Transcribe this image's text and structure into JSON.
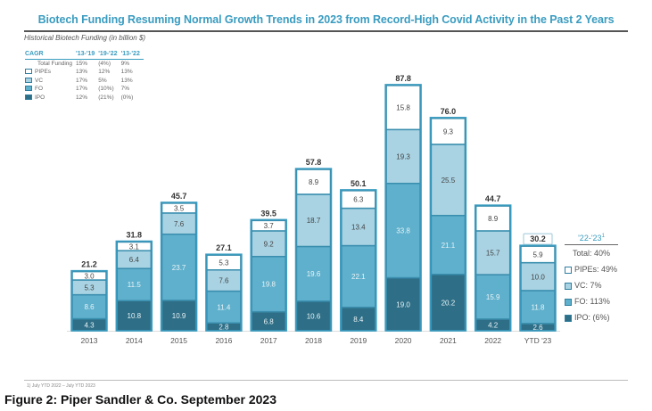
{
  "title": "Biotech Funding Resuming Normal Growth Trends in 2023 from Record-High Covid Activity in the Past 2 Years",
  "subtitle": "Historical Biotech Funding (in billion $)",
  "cagr_table": {
    "header": [
      "CAGR",
      "'13-'19",
      "'19-'22",
      "'13-'22"
    ],
    "rows": [
      {
        "label": "Total Funding",
        "swatch": null,
        "values": [
          "15%",
          "(4%)",
          "9%"
        ]
      },
      {
        "label": "PIPEs",
        "swatch": "#ffffff",
        "values": [
          "13%",
          "12%",
          "13%"
        ]
      },
      {
        "label": "VC",
        "swatch": "#a9d3e3",
        "values": [
          "17%",
          "5%",
          "13%"
        ]
      },
      {
        "label": "FO",
        "swatch": "#5fb0cc",
        "values": [
          "17%",
          "(10%)",
          "7%"
        ]
      },
      {
        "label": "IPO",
        "swatch": "#2e6e86",
        "values": [
          "12%",
          "(21%)",
          "(0%)"
        ]
      }
    ]
  },
  "right_legend": {
    "header": "'22-'23",
    "footnote_marker": "1",
    "total": "Total: 40%",
    "items": [
      {
        "label": "PIPEs: 49%",
        "color": "#ffffff"
      },
      {
        "label": "VC: 7%",
        "color": "#a9d3e3"
      },
      {
        "label": "FO: 113%",
        "color": "#5fb0cc"
      },
      {
        "label": "IPO: (6%)",
        "color": "#2e6e86"
      }
    ]
  },
  "footnote": "1)   July YTD 2022 – July YTD 2023",
  "caption": "Figure 2: Piper Sandler & Co. September 2023",
  "chart_data": {
    "type": "bar",
    "stacked": true,
    "title": "Biotech Funding Resuming Normal Growth Trends in 2023 from Record-High Covid Activity in the Past 2 Years",
    "xlabel": "",
    "ylabel": "Historical Biotech Funding (in billion $)",
    "ylim": [
      0,
      90
    ],
    "grid": false,
    "legend": "top-left",
    "categories": [
      "2013",
      "2014",
      "2015",
      "2016",
      "2017",
      "2018",
      "2019",
      "2020",
      "2021",
      "2022",
      "YTD '23"
    ],
    "totals": [
      21.2,
      31.8,
      45.7,
      27.1,
      39.5,
      57.8,
      50.1,
      87.8,
      76.0,
      44.7,
      30.2
    ],
    "series": [
      {
        "name": "IPO",
        "color": "#2e6e86",
        "text_color": "#e8f3f7",
        "values": [
          4.3,
          10.8,
          10.9,
          2.8,
          6.8,
          10.6,
          8.4,
          19.0,
          20.2,
          4.2,
          2.6
        ]
      },
      {
        "name": "FO",
        "color": "#5fb0cc",
        "text_color": "#e8f3f7",
        "values": [
          8.6,
          11.5,
          23.7,
          11.4,
          19.8,
          19.6,
          22.1,
          33.8,
          21.1,
          15.9,
          11.8
        ]
      },
      {
        "name": "VC",
        "color": "#a9d3e3",
        "text_color": "#444444",
        "values": [
          5.3,
          6.4,
          7.6,
          7.6,
          9.2,
          18.7,
          13.4,
          19.3,
          25.5,
          15.7,
          10.0
        ]
      },
      {
        "name": "PIPEs",
        "color": "#ffffff",
        "text_color": "#444444",
        "values": [
          3.0,
          3.1,
          3.5,
          5.3,
          3.7,
          8.9,
          6.3,
          15.8,
          9.3,
          8.9,
          5.9
        ]
      }
    ]
  }
}
